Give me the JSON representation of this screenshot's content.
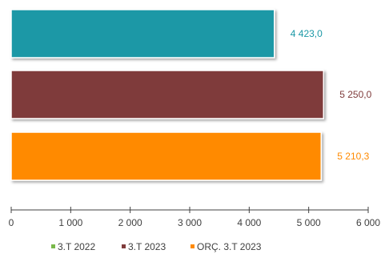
{
  "chart_data": {
    "type": "bar",
    "orientation": "horizontal",
    "title": "",
    "xlabel": "",
    "ylabel": "",
    "xlim": [
      0,
      6000
    ],
    "grid": false,
    "legend_position": "bottom",
    "ticks": [
      "0",
      "1 000",
      "2 000",
      "3 000",
      "4 000",
      "5 000",
      "6 000"
    ],
    "tick_values": [
      0,
      1000,
      2000,
      3000,
      4000,
      5000,
      6000
    ],
    "bars": [
      {
        "name": "3.T 2022",
        "value": 4423.0,
        "label": "4 423,0",
        "color": "#1b98a6",
        "legend_color": "#79b84a"
      },
      {
        "name": "3.T 2023",
        "value": 5250.0,
        "label": "5 250,0",
        "color": "#7f3b3b",
        "legend_color": "#7f3b3b"
      },
      {
        "name": "ORÇ. 3.T 2023",
        "value": 5210.3,
        "label": "5 210,3",
        "color": "#ff8a00",
        "legend_color": "#ff8a00"
      }
    ]
  }
}
